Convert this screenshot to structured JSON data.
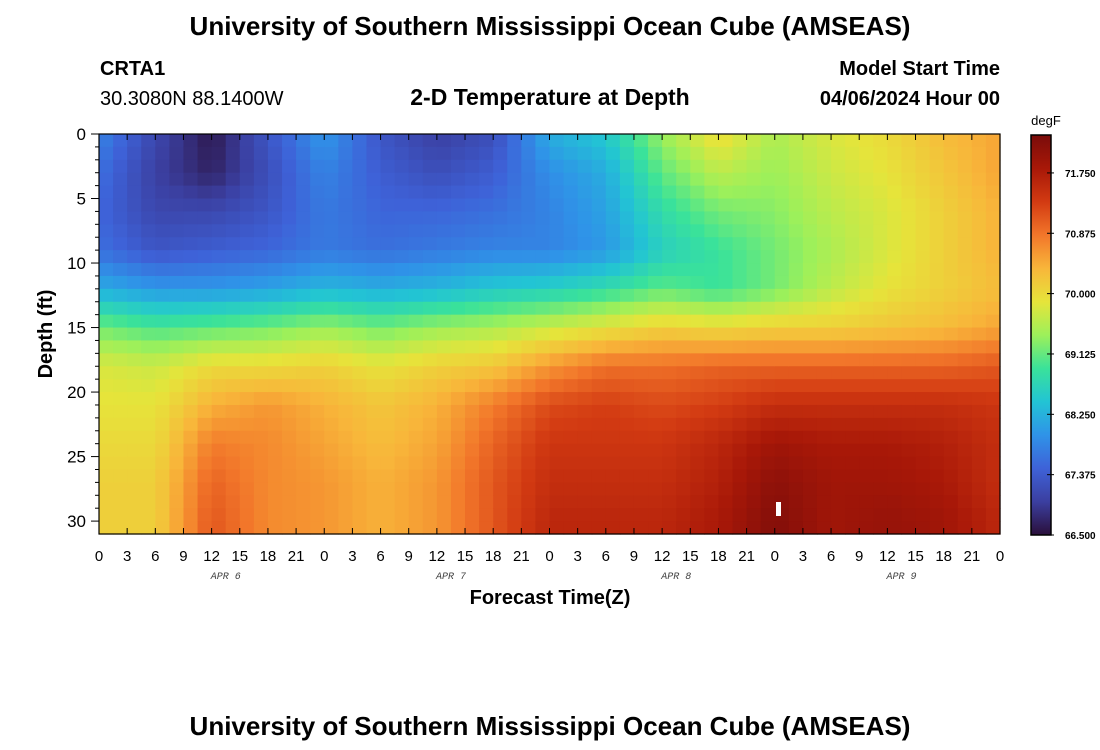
{
  "header": {
    "title": "University of Southern Mississippi Ocean Cube (AMSEAS)",
    "station": "CRTA1",
    "coords": "30.3080N  88.1400W",
    "plot_title": "2-D Temperature at Depth",
    "start_label": "Model Start Time",
    "start_value": "04/06/2024 Hour 00"
  },
  "footer": {
    "title": "University of Southern Mississippi Ocean Cube (AMSEAS)"
  },
  "colorbar": {
    "unit": "degF",
    "ticks": [
      "71.750",
      "70.875",
      "70.000",
      "69.125",
      "68.250",
      "67.375",
      "66.500"
    ],
    "tick_values": [
      71.75,
      70.875,
      70.0,
      69.125,
      68.25,
      67.375,
      66.5
    ],
    "min": 66.5,
    "max": 72.3,
    "stops": [
      "#2a0f3a",
      "#3b3fa0",
      "#3e62d8",
      "#2f93e8",
      "#22c4d4",
      "#3ae29a",
      "#9df05a",
      "#e6e43a",
      "#f8b63a",
      "#f2762a",
      "#d23a12",
      "#a81808",
      "#7a0c0a"
    ]
  },
  "chart_data": {
    "type": "heatmap",
    "title": "2-D Temperature at Depth",
    "xlabel": "Forecast Time(Z)",
    "ylabel": "Depth (ft)",
    "x_tick_labels": [
      "0",
      "3",
      "6",
      "9",
      "12",
      "15",
      "18",
      "21",
      "0",
      "3",
      "6",
      "9",
      "12",
      "15",
      "18",
      "21",
      "0",
      "3",
      "6",
      "9",
      "12",
      "15",
      "18",
      "21",
      "0",
      "3",
      "6",
      "9",
      "12",
      "15",
      "18",
      "21",
      "0"
    ],
    "date_labels": [
      "APR 6",
      "APR 7",
      "APR 8",
      "APR 9"
    ],
    "x_range_hours": [
      0,
      96
    ],
    "y_ticks": [
      0,
      5,
      10,
      15,
      20,
      25,
      30
    ],
    "y_range_ft": [
      0,
      31
    ],
    "value_unit": "degF",
    "depth_ft": [
      0,
      3,
      6,
      9,
      12,
      15,
      18,
      21,
      24,
      27,
      30
    ],
    "hours": [
      0,
      6,
      12,
      18,
      24,
      30,
      36,
      42,
      48,
      54,
      60,
      66,
      72,
      78,
      84,
      90,
      96
    ],
    "temperature": [
      [
        67.8,
        67.1,
        66.6,
        67.3,
        68.0,
        67.3,
        67.0,
        67.2,
        68.2,
        68.5,
        69.4,
        70.0,
        69.5,
        69.8,
        70.0,
        70.3,
        70.5
      ],
      [
        67.6,
        67.0,
        66.7,
        67.2,
        67.8,
        67.4,
        67.2,
        67.4,
        67.9,
        68.2,
        69.1,
        69.6,
        69.4,
        69.7,
        69.9,
        70.2,
        70.5
      ],
      [
        67.5,
        67.1,
        67.1,
        67.3,
        67.7,
        67.5,
        67.5,
        67.6,
        67.8,
        68.1,
        68.8,
        69.2,
        69.3,
        69.6,
        69.8,
        70.1,
        70.4
      ],
      [
        67.6,
        67.3,
        67.4,
        67.5,
        67.7,
        67.6,
        67.7,
        67.8,
        67.8,
        68.0,
        68.6,
        68.9,
        69.2,
        69.5,
        69.8,
        70.1,
        70.4
      ],
      [
        68.2,
        68.0,
        68.0,
        68.1,
        68.3,
        68.2,
        68.3,
        68.5,
        68.6,
        68.8,
        69.1,
        68.9,
        69.2,
        69.6,
        69.9,
        70.1,
        70.3
      ],
      [
        69.2,
        69.0,
        69.1,
        69.2,
        69.4,
        69.2,
        69.4,
        69.5,
        69.7,
        69.9,
        70.1,
        70.0,
        70.1,
        70.1,
        70.2,
        70.3,
        70.5
      ],
      [
        69.8,
        69.7,
        70.0,
        70.0,
        70.1,
        69.9,
        70.1,
        70.2,
        70.6,
        70.9,
        70.9,
        71.0,
        71.0,
        71.0,
        71.0,
        71.0,
        71.1
      ],
      [
        69.9,
        69.9,
        70.4,
        70.6,
        70.4,
        70.2,
        70.4,
        70.8,
        71.2,
        71.3,
        71.2,
        71.3,
        71.5,
        71.5,
        71.5,
        71.5,
        71.4
      ],
      [
        70.0,
        70.0,
        70.8,
        70.7,
        70.5,
        70.3,
        70.5,
        71.0,
        71.4,
        71.4,
        71.4,
        71.6,
        71.9,
        71.8,
        71.8,
        71.7,
        71.5
      ],
      [
        70.1,
        70.1,
        71.0,
        70.7,
        70.6,
        70.4,
        70.6,
        71.1,
        71.5,
        71.5,
        71.5,
        71.7,
        72.1,
        71.9,
        71.9,
        71.8,
        71.5
      ],
      [
        70.1,
        70.1,
        71.1,
        70.7,
        70.6,
        70.4,
        70.6,
        71.1,
        71.6,
        71.6,
        71.6,
        71.8,
        72.2,
        71.9,
        72.0,
        71.9,
        71.6
      ]
    ]
  }
}
